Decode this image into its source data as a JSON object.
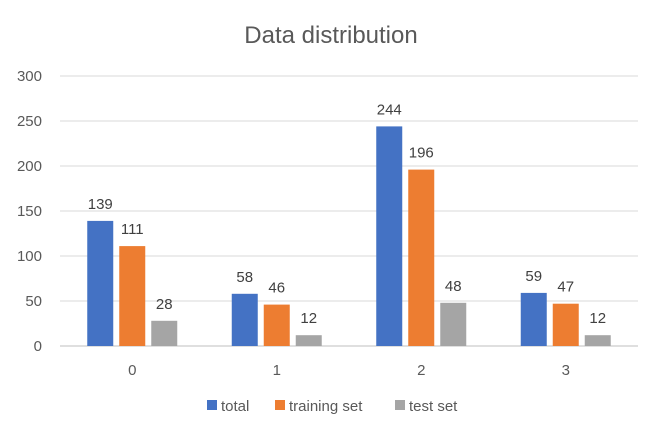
{
  "chart_data": {
    "type": "bar",
    "title": "Data distribution",
    "categories": [
      "0",
      "1",
      "2",
      "3"
    ],
    "series": [
      {
        "name": "total",
        "values": [
          139,
          58,
          244,
          59
        ],
        "color": "#4472c4"
      },
      {
        "name": "training set",
        "values": [
          111,
          46,
          196,
          47
        ],
        "color": "#ed7d31"
      },
      {
        "name": "test set",
        "values": [
          28,
          12,
          48,
          12
        ],
        "color": "#a5a5a5"
      }
    ],
    "ylim": [
      0,
      300
    ],
    "yticks": [
      0,
      50,
      100,
      150,
      200,
      250,
      300
    ],
    "grid": true,
    "legend_position": "bottom",
    "data_labels": true
  }
}
